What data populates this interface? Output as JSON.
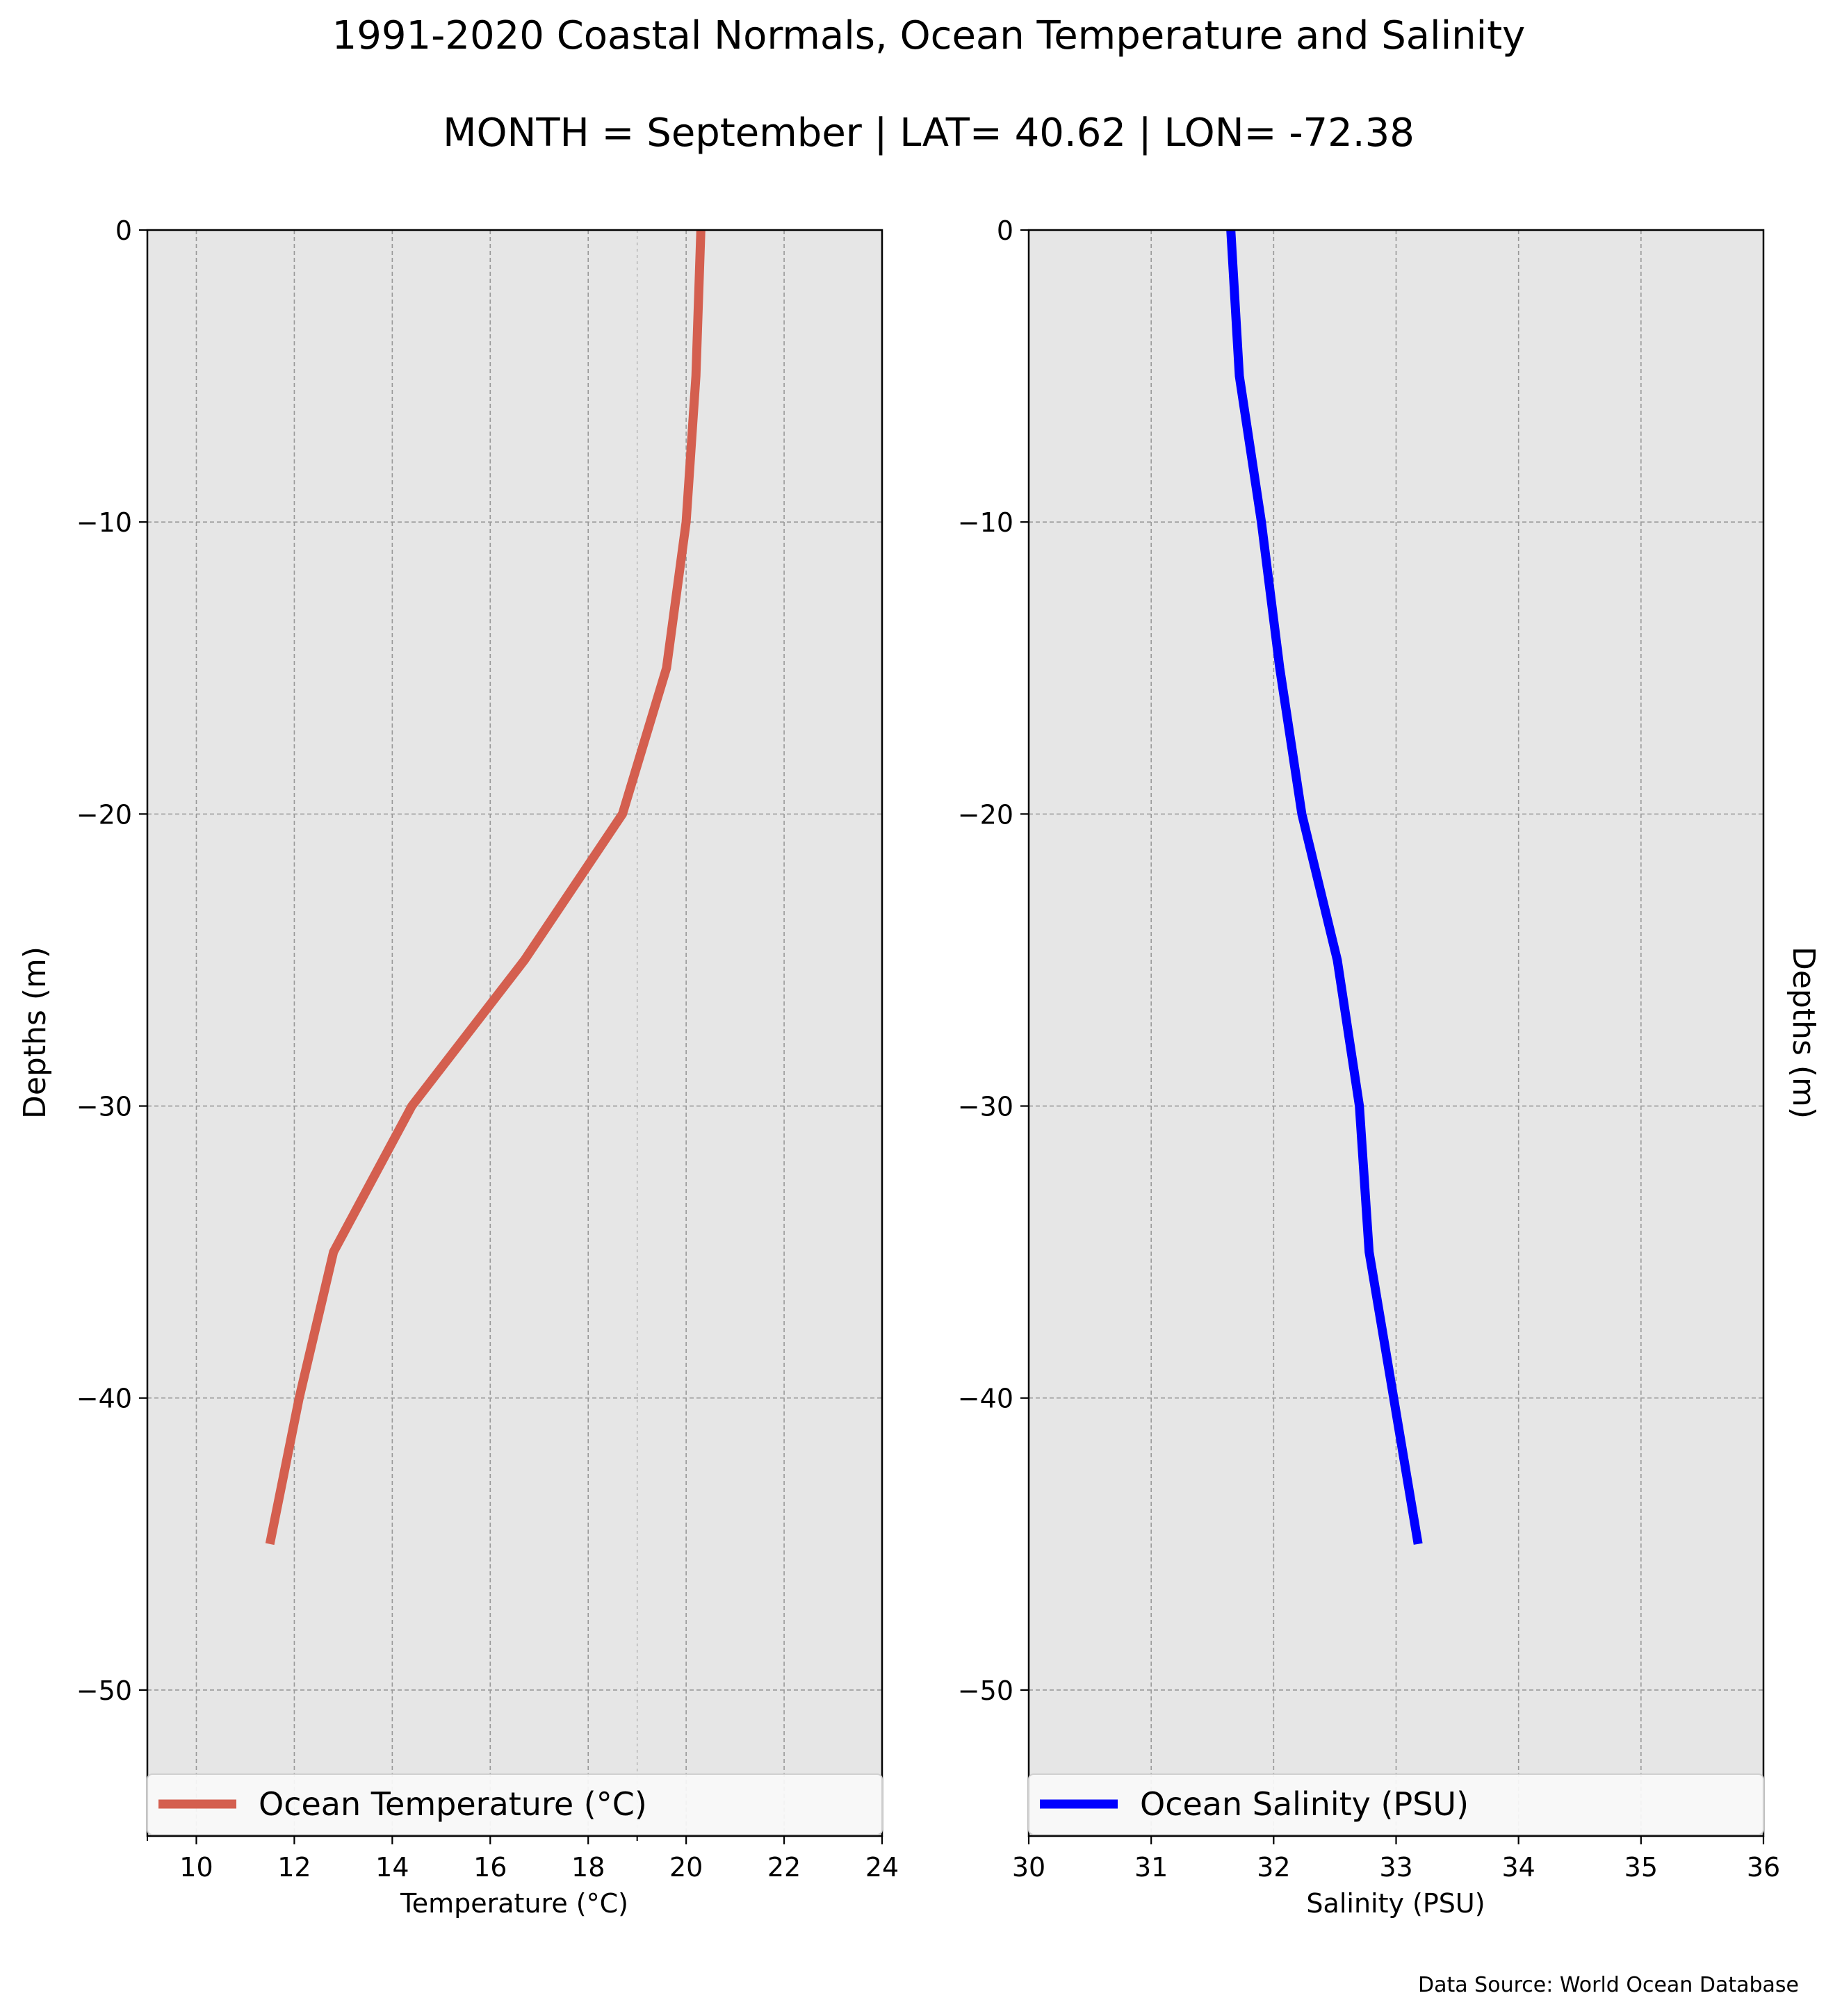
{
  "figure": {
    "title": "1991-2020 Coastal Normals, Ocean Temperature and Salinity",
    "subtitle": "MONTH = September | LAT= 40.62 | LON= -72.38",
    "source_note": "Data Source: World Ocean Database"
  },
  "colors": {
    "plot_background": "#e6e6e6",
    "grid": "#999999",
    "temperature_line": "#d45f4f",
    "salinity_line": "#0000ff"
  },
  "chart_data": [
    {
      "type": "line",
      "xlabel": "Temperature ($^\\circ$C)",
      "xlabel_display": "Temperature (°C)",
      "ylabel": "Depths (m)",
      "xlim": [
        9,
        24
      ],
      "ylim": [
        -55,
        0
      ],
      "xticks": [
        "10",
        "12",
        "14",
        "16",
        "18",
        "20",
        "22",
        "24"
      ],
      "xtick_values": [
        10,
        12,
        14,
        16,
        18,
        20,
        22,
        24
      ],
      "xminor_ticks": [
        9,
        19
      ],
      "yticks": [
        "0",
        "−10",
        "−20",
        "−30",
        "−40",
        "−50"
      ],
      "ytick_values": [
        0,
        -10,
        -20,
        -30,
        -40,
        -50
      ],
      "grid": true,
      "legend_position": "bottom",
      "series": [
        {
          "name": "Ocean Temperature ($^\\circ$C)",
          "name_display": "Ocean Temperature (°C)",
          "color": "#d45f4f",
          "x": [
            20.3,
            20.2,
            20.0,
            19.6,
            18.7,
            16.7,
            14.4,
            12.8,
            12.1,
            11.5
          ],
          "y": [
            0,
            -5,
            -10,
            -15,
            -20,
            -25,
            -30,
            -35,
            -40,
            -45
          ]
        }
      ]
    },
    {
      "type": "line",
      "xlabel": "Salinity (PSU)",
      "ylabel": "Depths (m)",
      "ylabel_position": "right",
      "xlim": [
        30,
        36
      ],
      "ylim": [
        -55,
        0
      ],
      "xticks": [
        "30",
        "31",
        "32",
        "33",
        "34",
        "35",
        "36"
      ],
      "xtick_values": [
        30,
        31,
        32,
        33,
        34,
        35,
        36
      ],
      "yticks": [
        "0",
        "−10",
        "−20",
        "−30",
        "−40",
        "−50"
      ],
      "ytick_values": [
        0,
        -10,
        -20,
        -30,
        -40,
        -50
      ],
      "grid": true,
      "legend_position": "bottom",
      "series": [
        {
          "name": "Ocean Salinity (PSU)",
          "color": "#0000ff",
          "x": [
            31.65,
            31.72,
            31.9,
            32.05,
            32.23,
            32.52,
            32.7,
            32.78,
            32.98,
            33.18
          ],
          "y": [
            0,
            -5,
            -10,
            -15,
            -20,
            -25,
            -30,
            -35,
            -40,
            -45
          ]
        }
      ]
    }
  ]
}
